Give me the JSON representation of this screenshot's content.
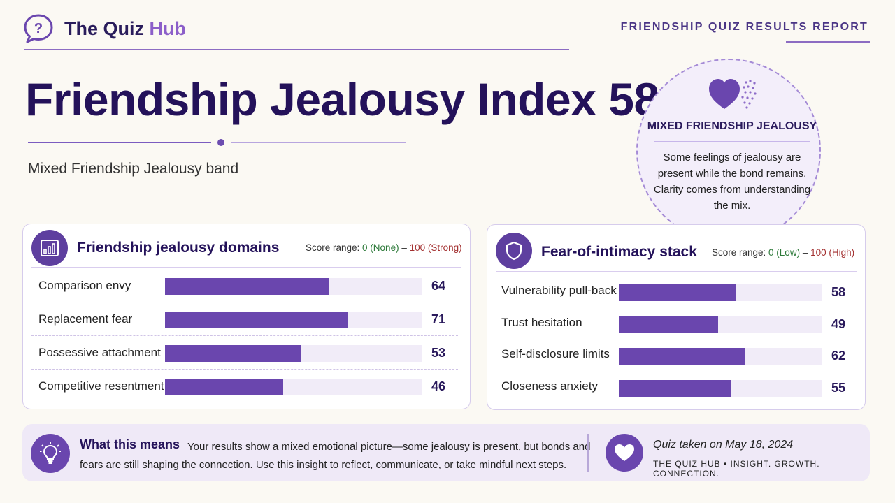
{
  "brand": {
    "name_prefix": "The Quiz ",
    "name_accent": "Hub"
  },
  "report_label": "FRIENDSHIP QUIZ RESULTS REPORT",
  "title": "Friendship Jealousy Index 58",
  "band_subtitle": "Mixed Friendship Jealousy band",
  "badge": {
    "title": "MIXED FRIENDSHIP JEALOUSY",
    "description": "Some feelings of jealousy are present while the bond remains. Clarity comes from understanding the mix."
  },
  "domains_card": {
    "title": "Friendship jealousy domains",
    "range_prefix": "Score range: ",
    "range_low": "0 (None)",
    "range_sep": " – ",
    "range_high": "100 (Strong)",
    "rows": [
      {
        "label": "Comparison envy",
        "value": 64
      },
      {
        "label": "Replacement fear",
        "value": 71
      },
      {
        "label": "Possessive attachment",
        "value": 53
      },
      {
        "label": "Competitive resentment",
        "value": 46
      }
    ]
  },
  "intimacy_card": {
    "title": "Fear-of-intimacy stack",
    "range_prefix": "Score range: ",
    "range_low": "0 (Low)",
    "range_sep": " – ",
    "range_high": "100 (High)",
    "rows": [
      {
        "label": "Vulnerability pull-back",
        "value": 58
      },
      {
        "label": "Trust hesitation",
        "value": 49
      },
      {
        "label": "Self-disclosure limits",
        "value": 62
      },
      {
        "label": "Closeness anxiety",
        "value": 55
      }
    ]
  },
  "footer": {
    "heading": "What this means",
    "text": "Your results show a mixed emotional picture—some jealousy is present, but bonds and fears are still shaping the connection. Use this insight to reflect, communicate, or take mindful next steps.",
    "date": "Quiz taken on May 18, 2024",
    "tagline": "THE QUIZ HUB • INSIGHT. GROWTH. CONNECTION."
  },
  "colors": {
    "accent": "#6a46ae",
    "title": "#24125a",
    "low": "#2d7a3a",
    "high": "#a33030"
  },
  "icons": [
    "question-bubble-icon",
    "heart-icon",
    "bar-chart-icon",
    "shield-icon",
    "lightbulb-icon"
  ]
}
